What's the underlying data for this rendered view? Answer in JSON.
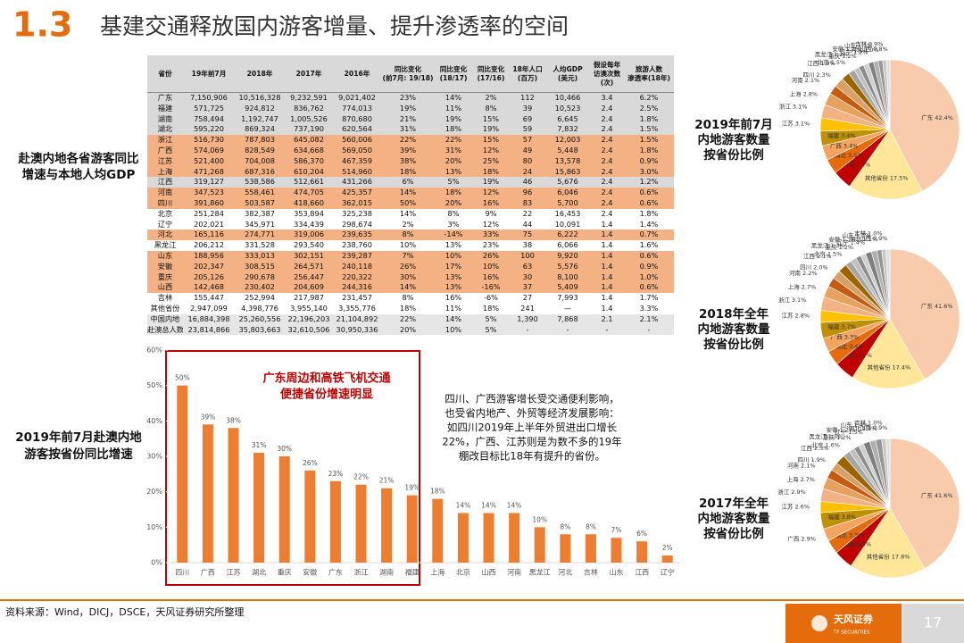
{
  "header": {
    "section": "1.3",
    "title": "基建交通释放国内游客增量、提升渗透率的空间"
  },
  "side_label": [
    "赴澳内地各省游客同比",
    "增速与本地人均GDP"
  ],
  "table": {
    "headers": [
      [
        "省份"
      ],
      [
        "19年前7月"
      ],
      [
        "2018年"
      ],
      [
        "2017年"
      ],
      [
        "2016年"
      ],
      [
        "同比变化",
        "(前7月: 19/18)"
      ],
      [
        "同比变化",
        "(18/17)"
      ],
      [
        "同比变化",
        "(17/16)"
      ],
      [
        "18年人口",
        "(百万)"
      ],
      [
        "人均GDP",
        "(美元)"
      ],
      [
        "假设每年",
        "访澳次数",
        "(次)"
      ],
      [
        "旅游人数",
        "渗透率(18年)"
      ]
    ],
    "rows": [
      [
        "广东",
        "7,150,906",
        "10,516,328",
        "9,232,591",
        "9,021,402",
        "23%",
        "14%",
        "2%",
        "112",
        "10,466",
        "3.4",
        "6.2%"
      ],
      [
        "福建",
        "571,725",
        "924,812",
        "836,762",
        "774,013",
        "19%",
        "11%",
        "8%",
        "39",
        "10,523",
        "2.4",
        "2.5%"
      ],
      [
        "湖南",
        "758,494",
        "1,192,747",
        "1,005,526",
        "870,680",
        "21%",
        "19%",
        "15%",
        "69",
        "6,645",
        "2.4",
        "1.8%"
      ],
      [
        "湖北",
        "595,220",
        "869,324",
        "737,190",
        "620,564",
        "31%",
        "18%",
        "19%",
        "59",
        "7,832",
        "2.4",
        "1.5%"
      ],
      [
        "浙江",
        "516,730",
        "787,803",
        "645,082",
        "560,006",
        "22%",
        "22%",
        "15%",
        "57",
        "12,003",
        "2.4",
        "1.5%"
      ],
      [
        "广西",
        "574,069",
        "828,549",
        "634,668",
        "569,050",
        "39%",
        "31%",
        "12%",
        "49",
        "5,448",
        "2.4",
        "1.8%"
      ],
      [
        "江苏",
        "521,400",
        "704,008",
        "586,370",
        "467,359",
        "38%",
        "20%",
        "25%",
        "80",
        "13,578",
        "2.4",
        "0.9%"
      ],
      [
        "上海",
        "471,268",
        "687,316",
        "610,204",
        "514,960",
        "18%",
        "13%",
        "18%",
        "24",
        "15,863",
        "2.4",
        "3.0%"
      ],
      [
        "江西",
        "319,127",
        "538,586",
        "512,661",
        "431,266",
        "6%",
        "5%",
        "19%",
        "46",
        "5,676",
        "2.4",
        "1.2%"
      ],
      [
        "河南",
        "347,523",
        "558,461",
        "474,705",
        "425,357",
        "14%",
        "18%",
        "12%",
        "96",
        "6,046",
        "2.4",
        "0.6%"
      ],
      [
        "四川",
        "391,860",
        "503,587",
        "418,660",
        "362,015",
        "50%",
        "20%",
        "16%",
        "83",
        "5,700",
        "2.4",
        "0.6%"
      ],
      [
        "北京",
        "251,284",
        "382,387",
        "353,894",
        "325,238",
        "14%",
        "8%",
        "9%",
        "22",
        "16,453",
        "2.4",
        "1.8%"
      ],
      [
        "辽宁",
        "202,021",
        "345,971",
        "334,439",
        "298,674",
        "2%",
        "3%",
        "12%",
        "44",
        "10,091",
        "1.4",
        "1.4%"
      ],
      [
        "河北",
        "165,116",
        "274,771",
        "319,006",
        "239,635",
        "8%",
        "-14%",
        "33%",
        "75",
        "6,222",
        "1.4",
        "0.7%"
      ],
      [
        "黑龙江",
        "206,212",
        "331,528",
        "293,540",
        "238,760",
        "10%",
        "13%",
        "23%",
        "38",
        "6,066",
        "1.4",
        "1.6%"
      ],
      [
        "山东",
        "188,956",
        "333,013",
        "302,151",
        "239,287",
        "7%",
        "10%",
        "26%",
        "100",
        "9,920",
        "1.4",
        "0.6%"
      ],
      [
        "安徽",
        "202,347",
        "308,515",
        "264,571",
        "240,118",
        "26%",
        "17%",
        "10%",
        "63",
        "5,576",
        "1.4",
        "0.9%"
      ],
      [
        "重庆",
        "205,126",
        "290,678",
        "256,447",
        "220,322",
        "30%",
        "13%",
        "16%",
        "30",
        "8,100",
        "1.4",
        "1.0%"
      ],
      [
        "山西",
        "142,468",
        "230,402",
        "204,609",
        "244,316",
        "14%",
        "13%",
        "-16%",
        "37",
        "5,409",
        "1.4",
        "0.6%"
      ],
      [
        "吉林",
        "155,447",
        "252,994",
        "217,987",
        "231,457",
        "8%",
        "16%",
        "-6%",
        "27",
        "7,993",
        "1.4",
        "1.7%"
      ],
      [
        "其他省份",
        "2,947,099",
        "4,398,776",
        "3,955,140",
        "3,355,776",
        "18%",
        "11%",
        "18%",
        "241",
        "—",
        "1.4",
        "3.3%"
      ],
      [
        "中国内地",
        "16,884,398",
        "25,260,556",
        "22,196,203",
        "21,104,892",
        "22%",
        "14%",
        "5%",
        "1,390",
        "7,868",
        "2.1",
        "2.1%"
      ],
      [
        "赴澳总人数",
        "23,814,866",
        "35,803,663",
        "32,610,506",
        "30,950,336",
        "20%",
        "10%",
        "5%",
        "-",
        "-",
        "-",
        "-"
      ]
    ]
  },
  "chart_data": [
    {
      "type": "bar",
      "title": [
        "2019年前7月赴澳内地",
        "游客按省份同比增速"
      ],
      "color": "#ed7d31",
      "categories": [
        "四川",
        "广西",
        "江苏",
        "湖北",
        "重庆",
        "安徽",
        "广东",
        "浙江",
        "湖南",
        "福建",
        "上海",
        "北京",
        "山西",
        "河南",
        "黑龙江",
        "河北",
        "吉林",
        "山东",
        "江西",
        "辽宁"
      ],
      "values": [
        50,
        39,
        38,
        31,
        30,
        26,
        23,
        22,
        21,
        19,
        18,
        14,
        14,
        14,
        10,
        8,
        8,
        7,
        6,
        2
      ],
      "value_labels": [
        "50%",
        "39%",
        "38%",
        "31%",
        "30%",
        "26%",
        "23%",
        "22%",
        "21%",
        "19%",
        "18%",
        "14%",
        "14%",
        "14%",
        "10%",
        "8%",
        "8%",
        "7%",
        "6%",
        "2%"
      ],
      "ylim": [
        0,
        60
      ],
      "yticks": [
        {
          "value": 0,
          "label": "0%"
        },
        {
          "value": 10,
          "label": "10%"
        },
        {
          "value": 20,
          "label": "20%"
        },
        {
          "value": 30,
          "label": "30%"
        },
        {
          "value": 40,
          "label": "40%"
        },
        {
          "value": 50,
          "label": "50%"
        },
        {
          "value": 60,
          "label": "60%"
        }
      ],
      "annotations": [
        [
          "广东周边和高铁飞机交通",
          "便捷省份增速明显"
        ],
        [
          "四川、广西游客增长受交通便利影响，",
          "也受省内地产、外贸等经济发展影响：",
          "如四川2019年上半年外贸进出口增长",
          "22%，广西、江苏则是为数不多的19年",
          "棚改目标比18年有提升的省份。"
        ]
      ]
    },
    {
      "type": "pie",
      "title": [
        "2019年前7月",
        "内地游客数量",
        "按省份比例"
      ],
      "categories": [
        "广东",
        "其他省份",
        "湖南",
        "湖北",
        "广西",
        "福建",
        "江苏",
        "浙江",
        "上海",
        "河南",
        "四川",
        "江西",
        "北京",
        "黑龙江",
        "重庆",
        "安徽",
        "辽宁",
        "山东",
        "河北",
        "吉林",
        "山西"
      ],
      "values": [
        42.4,
        17.5,
        4.5,
        3.5,
        3.4,
        3.4,
        3.1,
        3.1,
        2.8,
        2.1,
        2.3,
        1.9,
        1.5,
        1.2,
        1.2,
        1.2,
        1.2,
        1.1,
        1.0,
        0.9,
        0.8
      ],
      "value_labels": [
        "42.4%",
        "17.5%",
        "4.5%",
        "3.5%",
        "3.4%",
        "3.4%",
        "3.1%",
        "3.1%",
        "2.8%",
        "2.1%",
        "2.3%",
        "1.9%",
        "1.5%",
        "1.2%",
        "1.2%",
        "1.2%",
        "1.2%",
        "1.1%",
        "1.0%",
        "0.9%",
        "0.8%"
      ],
      "colors": [
        "#f8cbad",
        "#ffe699",
        "#c00000",
        "#e46c0a",
        "#f4a460",
        "#bf9000",
        "#ffc000",
        "#f4b183",
        "#e6a15c",
        "#c55a11",
        "#d9a066",
        "#9c6500",
        "#a5a5a5",
        "#bfbfbf",
        "#8c8c8c",
        "#d0d0d0",
        "#7f7f7f",
        "#b0b0b0",
        "#969696",
        "#c9c9c9",
        "#e0e0e0"
      ]
    },
    {
      "type": "pie",
      "title": [
        "2018年全年",
        "内地游客数量",
        "按省份比例"
      ],
      "categories": [
        "广东",
        "其他省份",
        "湖南",
        "湖北",
        "广西",
        "福建",
        "江苏",
        "浙江",
        "上海",
        "河南",
        "四川",
        "江西",
        "北京",
        "黑龙江",
        "重庆",
        "安徽",
        "辽宁",
        "山东",
        "河北",
        "吉林",
        "山西"
      ],
      "values": [
        41.6,
        17.4,
        4.7,
        3.4,
        3.3,
        3.7,
        2.8,
        3.1,
        2.7,
        2.2,
        2.0,
        2.1,
        1.5,
        1.3,
        1.2,
        1.2,
        1.4,
        1.3,
        1.1,
        1.0,
        0.9
      ],
      "value_labels": [
        "41.6%",
        "17.4%",
        "4.7%",
        "3.4%",
        "3.3%",
        "3.7%",
        "2.8%",
        "3.1%",
        "2.7%",
        "2.2%",
        "2.0%",
        "2.1%",
        "1.5%",
        "1.3%",
        "1.2%",
        "1.2%",
        "1.4%",
        "1.3%",
        "1.1%",
        "1.0%",
        "0.9%"
      ],
      "colors": [
        "#f8cbad",
        "#ffe699",
        "#c00000",
        "#e46c0a",
        "#f4a460",
        "#bf9000",
        "#ffc000",
        "#f4b183",
        "#e6a15c",
        "#c55a11",
        "#d9a066",
        "#9c6500",
        "#a5a5a5",
        "#bfbfbf",
        "#8c8c8c",
        "#d0d0d0",
        "#7f7f7f",
        "#b0b0b0",
        "#969696",
        "#c9c9c9",
        "#e0e0e0"
      ]
    },
    {
      "type": "pie",
      "title": [
        "2017年全年",
        "内地游客数量",
        "按省份比例"
      ],
      "categories": [
        "广东",
        "其他省份",
        "湖南",
        "湖北",
        "广西",
        "福建",
        "江苏",
        "浙江",
        "上海",
        "河南",
        "四川",
        "江西",
        "北京",
        "黑龙江",
        "重庆",
        "安徽",
        "辽宁",
        "山东",
        "河北",
        "吉林",
        "山西"
      ],
      "values": [
        41.6,
        17.8,
        4.5,
        3.3,
        2.9,
        3.8,
        2.6,
        2.9,
        2.7,
        2.1,
        1.9,
        2.3,
        1.6,
        1.3,
        1.2,
        1.2,
        1.5,
        1.4,
        1.4,
        1.0,
        0.9
      ],
      "value_labels": [
        "41.6%",
        "17.8%",
        "4.5%",
        "3.3%",
        "2.9%",
        "3.8%",
        "2.6%",
        "2.9%",
        "2.7%",
        "2.1%",
        "1.9%",
        "2.3%",
        "1.6%",
        "1.3%",
        "1.2%",
        "1.2%",
        "1.5%",
        "1.4%",
        "1.4%",
        "1.0%",
        "0.9%"
      ],
      "colors": [
        "#f8cbad",
        "#ffe699",
        "#c00000",
        "#e46c0a",
        "#f4a460",
        "#bf9000",
        "#ffc000",
        "#f4b183",
        "#e6a15c",
        "#c55a11",
        "#d9a066",
        "#9c6500",
        "#a5a5a5",
        "#bfbfbf",
        "#8c8c8c",
        "#d0d0d0",
        "#7f7f7f",
        "#b0b0b0",
        "#969696",
        "#c9c9c9",
        "#e0e0e0"
      ]
    }
  ],
  "footer": {
    "source": "资料来源：Wind，DICJ，DSCE，天风证券研究所整理",
    "logo": "天风证券",
    "logo_en": "TF SECURITIES",
    "page": "17"
  }
}
